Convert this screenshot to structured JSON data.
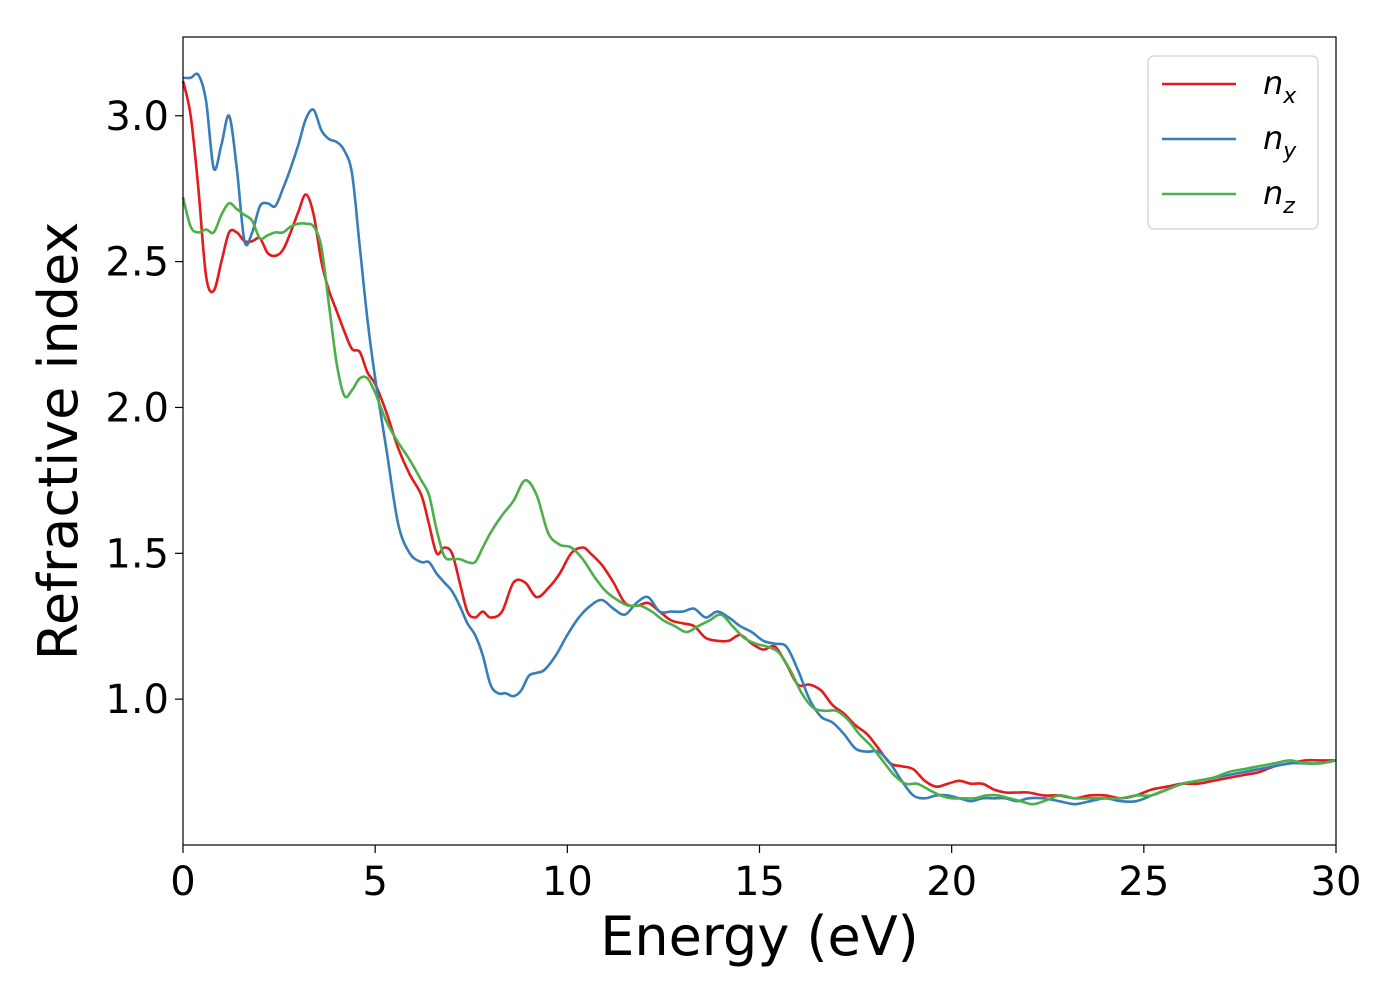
{
  "chart_data": {
    "type": "line",
    "xlabel": "Energy (eV)",
    "ylabel": "Refractive index",
    "xlim": [
      0,
      30
    ],
    "ylim": [
      0.5,
      3.27
    ],
    "xticks": [
      0,
      5,
      10,
      15,
      20,
      25,
      30
    ],
    "xtick_labels": [
      "0",
      "5",
      "10",
      "15",
      "20",
      "25",
      "30"
    ],
    "yticks": [
      1.0,
      1.5,
      2.0,
      2.5,
      3.0
    ],
    "ytick_labels": [
      "1.0",
      "1.5",
      "2.0",
      "2.5",
      "3.0"
    ],
    "grid": false,
    "legend_position": "top-right",
    "series": [
      {
        "name": "n",
        "subscript": "x",
        "color": "#e41a1c",
        "x": [
          0,
          0.2,
          0.4,
          0.6,
          0.8,
          1.0,
          1.2,
          1.4,
          1.6,
          1.8,
          2.0,
          2.2,
          2.4,
          2.6,
          2.8,
          3.0,
          3.2,
          3.4,
          3.6,
          3.8,
          4.0,
          4.2,
          4.4,
          4.6,
          4.8,
          5.0,
          5.3,
          5.6,
          5.9,
          6.2,
          6.4,
          6.6,
          6.8,
          7.0,
          7.2,
          7.4,
          7.6,
          7.8,
          8.0,
          8.3,
          8.6,
          8.9,
          9.2,
          9.5,
          9.8,
          10.1,
          10.4,
          10.6,
          10.9,
          11.2,
          11.5,
          11.8,
          12.1,
          12.4,
          12.7,
          13.0,
          13.3,
          13.6,
          13.9,
          14.2,
          14.5,
          14.8,
          15.1,
          15.4,
          15.7,
          16.0,
          16.3,
          16.6,
          16.9,
          17.2,
          17.5,
          17.8,
          18.1,
          18.4,
          18.7,
          19.0,
          19.3,
          19.6,
          19.9,
          20.2,
          20.5,
          20.8,
          21.1,
          21.4,
          21.7,
          22.0,
          22.4,
          22.8,
          23.2,
          23.6,
          24.0,
          24.4,
          24.8,
          25.2,
          25.6,
          26.0,
          26.4,
          26.8,
          27.2,
          27.6,
          28.0,
          28.4,
          28.8,
          29.2,
          29.6,
          30.0
        ],
        "values": [
          3.12,
          3.0,
          2.75,
          2.45,
          2.4,
          2.5,
          2.6,
          2.6,
          2.57,
          2.57,
          2.58,
          2.53,
          2.52,
          2.54,
          2.6,
          2.67,
          2.73,
          2.66,
          2.5,
          2.4,
          2.33,
          2.26,
          2.2,
          2.19,
          2.12,
          2.08,
          1.98,
          1.86,
          1.77,
          1.7,
          1.6,
          1.5,
          1.52,
          1.5,
          1.4,
          1.3,
          1.28,
          1.3,
          1.28,
          1.3,
          1.4,
          1.4,
          1.35,
          1.38,
          1.43,
          1.5,
          1.52,
          1.5,
          1.46,
          1.4,
          1.33,
          1.32,
          1.33,
          1.3,
          1.27,
          1.26,
          1.25,
          1.21,
          1.2,
          1.2,
          1.22,
          1.19,
          1.17,
          1.18,
          1.12,
          1.05,
          1.05,
          1.03,
          0.98,
          0.95,
          0.91,
          0.88,
          0.83,
          0.78,
          0.77,
          0.76,
          0.72,
          0.7,
          0.71,
          0.72,
          0.71,
          0.71,
          0.69,
          0.68,
          0.68,
          0.68,
          0.67,
          0.67,
          0.66,
          0.67,
          0.67,
          0.66,
          0.67,
          0.69,
          0.7,
          0.71,
          0.71,
          0.72,
          0.73,
          0.74,
          0.75,
          0.77,
          0.78,
          0.79,
          0.79,
          0.79
        ]
      },
      {
        "name": "n",
        "subscript": "y",
        "color": "#377eb8",
        "x": [
          0,
          0.2,
          0.4,
          0.6,
          0.8,
          1.0,
          1.2,
          1.4,
          1.6,
          1.8,
          2.0,
          2.2,
          2.4,
          2.6,
          2.8,
          3.0,
          3.2,
          3.4,
          3.6,
          3.8,
          4.0,
          4.2,
          4.4,
          4.6,
          4.8,
          5.0,
          5.3,
          5.6,
          5.9,
          6.2,
          6.4,
          6.6,
          6.8,
          7.0,
          7.2,
          7.4,
          7.6,
          7.8,
          8.0,
          8.2,
          8.4,
          8.6,
          8.8,
          9.0,
          9.2,
          9.4,
          9.7,
          10.0,
          10.3,
          10.6,
          10.9,
          11.2,
          11.5,
          11.8,
          12.1,
          12.4,
          12.7,
          13.0,
          13.3,
          13.6,
          13.9,
          14.2,
          14.5,
          14.8,
          15.1,
          15.4,
          15.7,
          16.0,
          16.3,
          16.6,
          16.9,
          17.2,
          17.5,
          17.8,
          18.1,
          18.4,
          18.7,
          19.0,
          19.3,
          19.6,
          19.9,
          20.2,
          20.5,
          20.8,
          21.1,
          21.4,
          21.7,
          22.0,
          22.4,
          22.8,
          23.2,
          23.6,
          24.0,
          24.4,
          24.8,
          25.2,
          25.6,
          26.0,
          26.4,
          26.8,
          27.2,
          27.6,
          28.0,
          28.4,
          28.8,
          29.2,
          29.6,
          30.0
        ],
        "values": [
          3.13,
          3.13,
          3.14,
          3.05,
          2.82,
          2.9,
          3.0,
          2.82,
          2.57,
          2.6,
          2.69,
          2.7,
          2.69,
          2.75,
          2.82,
          2.9,
          2.99,
          3.02,
          2.95,
          2.92,
          2.91,
          2.88,
          2.8,
          2.55,
          2.3,
          2.1,
          1.85,
          1.6,
          1.5,
          1.47,
          1.47,
          1.43,
          1.4,
          1.37,
          1.32,
          1.26,
          1.22,
          1.15,
          1.05,
          1.02,
          1.02,
          1.01,
          1.03,
          1.08,
          1.09,
          1.1,
          1.15,
          1.22,
          1.28,
          1.32,
          1.34,
          1.31,
          1.29,
          1.33,
          1.35,
          1.3,
          1.3,
          1.3,
          1.31,
          1.28,
          1.3,
          1.28,
          1.25,
          1.23,
          1.2,
          1.19,
          1.18,
          1.1,
          1.0,
          0.94,
          0.92,
          0.88,
          0.83,
          0.82,
          0.82,
          0.78,
          0.72,
          0.67,
          0.66,
          0.67,
          0.67,
          0.66,
          0.65,
          0.66,
          0.66,
          0.66,
          0.65,
          0.66,
          0.66,
          0.65,
          0.64,
          0.65,
          0.66,
          0.65,
          0.65,
          0.67,
          0.69,
          0.71,
          0.72,
          0.73,
          0.74,
          0.75,
          0.76,
          0.77,
          0.78,
          0.78,
          0.78,
          0.79
        ]
      },
      {
        "name": "n",
        "subscript": "z",
        "color": "#4daf4a",
        "x": [
          0,
          0.2,
          0.4,
          0.6,
          0.8,
          1.0,
          1.2,
          1.4,
          1.6,
          1.8,
          2.0,
          2.2,
          2.4,
          2.6,
          2.8,
          3.0,
          3.2,
          3.4,
          3.6,
          3.8,
          4.0,
          4.2,
          4.4,
          4.6,
          4.8,
          5.0,
          5.3,
          5.6,
          5.9,
          6.2,
          6.4,
          6.6,
          6.8,
          7.0,
          7.2,
          7.4,
          7.6,
          7.8,
          8.0,
          8.3,
          8.6,
          8.9,
          9.2,
          9.5,
          9.8,
          10.1,
          10.4,
          10.7,
          11.0,
          11.3,
          11.6,
          11.9,
          12.2,
          12.5,
          12.8,
          13.1,
          13.4,
          13.7,
          14.0,
          14.3,
          14.6,
          14.9,
          15.2,
          15.5,
          15.8,
          16.1,
          16.4,
          16.7,
          17.0,
          17.3,
          17.6,
          17.9,
          18.2,
          18.5,
          18.8,
          19.1,
          19.4,
          19.7,
          20.0,
          20.3,
          20.6,
          20.9,
          21.2,
          21.5,
          21.8,
          22.1,
          22.4,
          22.8,
          23.2,
          23.6,
          24.0,
          24.4,
          24.8,
          25.2,
          25.6,
          26.0,
          26.4,
          26.8,
          27.2,
          27.6,
          28.0,
          28.4,
          28.8,
          29.2,
          29.6,
          30.0
        ],
        "values": [
          2.72,
          2.62,
          2.6,
          2.61,
          2.6,
          2.66,
          2.7,
          2.68,
          2.66,
          2.64,
          2.58,
          2.59,
          2.6,
          2.6,
          2.62,
          2.63,
          2.63,
          2.62,
          2.55,
          2.35,
          2.15,
          2.04,
          2.06,
          2.1,
          2.1,
          2.05,
          1.95,
          1.88,
          1.82,
          1.75,
          1.7,
          1.58,
          1.49,
          1.48,
          1.48,
          1.47,
          1.47,
          1.52,
          1.57,
          1.63,
          1.68,
          1.75,
          1.7,
          1.57,
          1.53,
          1.52,
          1.48,
          1.42,
          1.37,
          1.34,
          1.32,
          1.32,
          1.3,
          1.27,
          1.25,
          1.23,
          1.25,
          1.27,
          1.29,
          1.25,
          1.21,
          1.19,
          1.18,
          1.16,
          1.1,
          1.02,
          0.97,
          0.96,
          0.96,
          0.93,
          0.88,
          0.84,
          0.79,
          0.74,
          0.71,
          0.71,
          0.69,
          0.67,
          0.66,
          0.66,
          0.66,
          0.67,
          0.67,
          0.66,
          0.65,
          0.64,
          0.65,
          0.67,
          0.66,
          0.66,
          0.66,
          0.66,
          0.67,
          0.67,
          0.69,
          0.71,
          0.72,
          0.73,
          0.75,
          0.76,
          0.77,
          0.78,
          0.79,
          0.78,
          0.78,
          0.79
        ]
      }
    ]
  }
}
